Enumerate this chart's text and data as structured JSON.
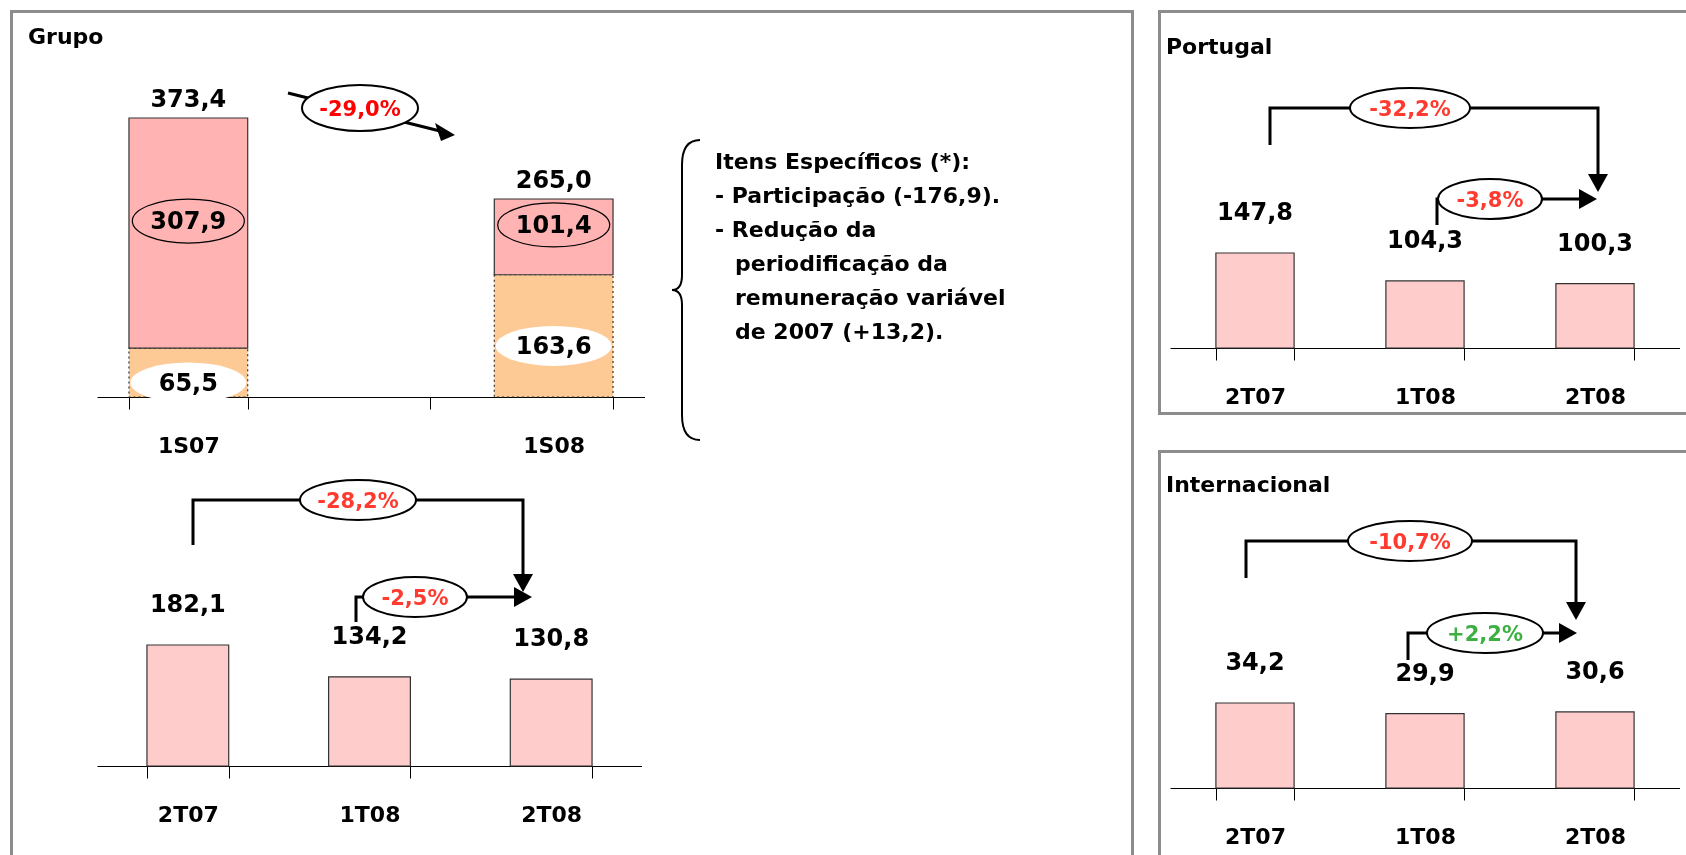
{
  "chart_data": [
    {
      "type": "bar",
      "title": "Grupo",
      "categories": [
        "1S07",
        null,
        "1S08"
      ],
      "stacked": true,
      "tick_labels": "x",
      "series": [
        {
          "color": "#fdca96",
          "values": [
            65.5,
            null,
            163.6
          ],
          "value_labels": [
            "65,5",
            null,
            "163,6"
          ]
        },
        {
          "color": "#ffb3b3",
          "values": [
            307.9,
            null,
            101.4
          ],
          "value_labels": [
            "307,9",
            null,
            "101,4"
          ]
        }
      ],
      "totals": [
        "373,4",
        null,
        "265,0"
      ],
      "annotations": [
        "-29,0%",
        "Itens Específicos (*):",
        "- Participação (-176,9).",
        "- Redução da periodificação da remuneração variável de 2007 (+13,2)."
      ]
    },
    {
      "type": "bar",
      "categories": [
        "2T07",
        "1T08",
        "2T08"
      ],
      "tick_labels": "x",
      "values": [
        182.1,
        134.2,
        130.8
      ],
      "value_labels": [
        "182,1",
        "134,2",
        "130,8"
      ],
      "color": "#ffcccc",
      "annotations": [
        "-28,2%",
        "-2,5%"
      ]
    },
    {
      "type": "bar",
      "title": "Portugal",
      "categories": [
        "2T07",
        "1T08",
        "2T08"
      ],
      "tick_labels": "x",
      "values": [
        147.8,
        104.3,
        100.3
      ],
      "value_labels": [
        "147,8",
        "104,3",
        "100,3"
      ],
      "color": "#ffcccc",
      "annotations": [
        "-32,2%",
        "-3,8%"
      ]
    },
    {
      "type": "bar",
      "title": "Internacional",
      "categories": [
        "2T07",
        "1T08",
        "2T08"
      ],
      "tick_labels": "x",
      "values": [
        34.2,
        29.9,
        30.6
      ],
      "value_labels": [
        "34,2",
        "29,9",
        "30,6"
      ],
      "color": "#ffcccc",
      "annotations": [
        "-10,7%",
        "+2,2%"
      ]
    }
  ]
}
